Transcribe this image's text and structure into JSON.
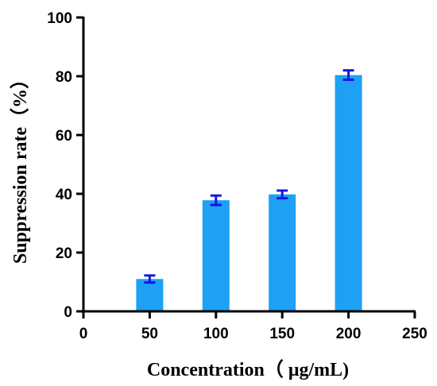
{
  "chart_data": {
    "type": "bar",
    "x": [
      50,
      100,
      150,
      200
    ],
    "values": [
      11,
      37.8,
      39.8,
      80.4
    ],
    "errors": [
      1.2,
      1.6,
      1.3,
      1.6
    ],
    "xlabel": "Concentration（ μg/mL)",
    "ylabel": "Suppression rate（%）",
    "xlim": [
      0,
      250
    ],
    "ylim": [
      0,
      100
    ],
    "xticks": [
      0,
      50,
      100,
      150,
      200,
      250
    ],
    "yticks": [
      0,
      20,
      40,
      60,
      80,
      100
    ],
    "grid": false,
    "colors": {
      "bar": "#1EA0F5",
      "error_bar": "#1515E6",
      "axis": "#000000"
    }
  }
}
